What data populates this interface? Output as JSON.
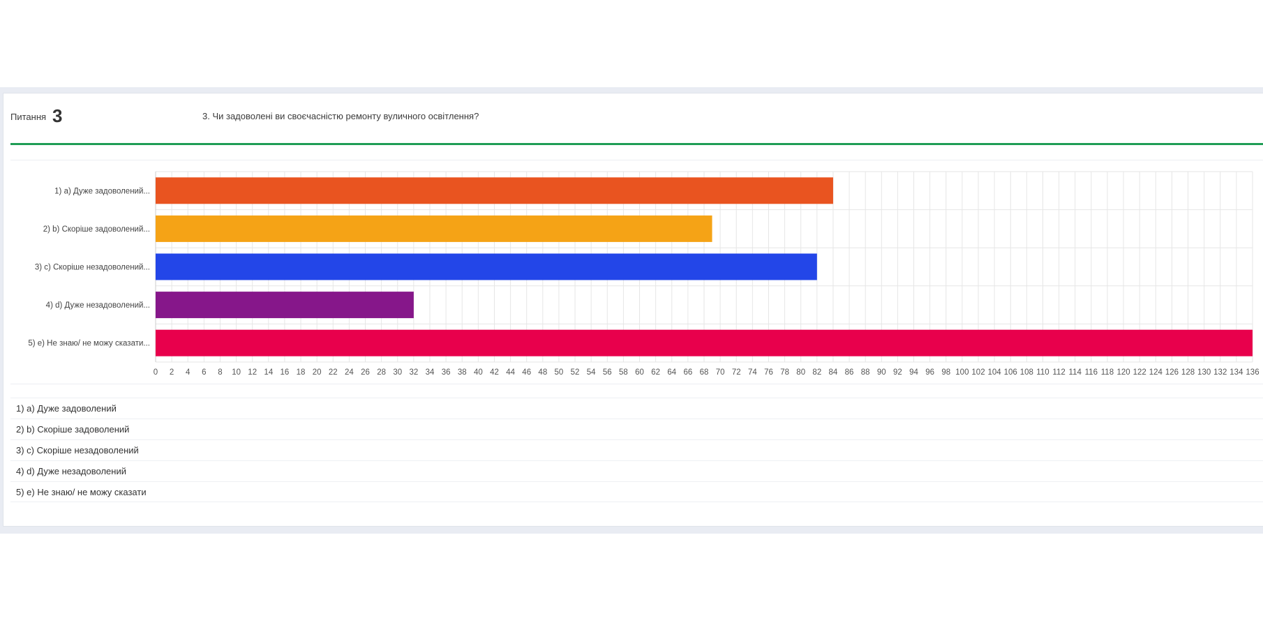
{
  "question": {
    "label": "Питання",
    "number": "3",
    "text": "3. Чи задоволені ви своєчасністю ремонту вуличного освітлення?"
  },
  "chart_data": {
    "type": "bar",
    "orientation": "horizontal",
    "title": "",
    "xlabel": "",
    "ylabel": "",
    "categories": [
      "1) a) Дуже задоволений...",
      "2) b) Скоріше задоволений...",
      "3) c) Скоріше незадоволений...",
      "4) d) Дуже незадоволений...",
      "5) e) Не знаю/ не можу сказати..."
    ],
    "values": [
      84,
      69,
      82,
      32,
      136
    ],
    "colors": [
      "#e95420",
      "#f5a316",
      "#2346e8",
      "#86178a",
      "#e8004c"
    ],
    "xlim": [
      0,
      136
    ],
    "tick_step": 2,
    "grid": true
  },
  "legend": [
    "1) a) Дуже задоволений",
    "2) b) Скоріше задоволений",
    "3) c) Скоріше незадоволений",
    "4) d) Дуже незадоволений",
    "5) e) Не знаю/ не можу сказати"
  ]
}
